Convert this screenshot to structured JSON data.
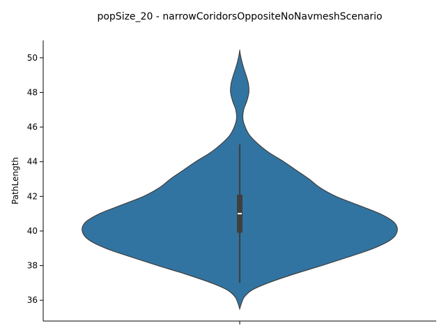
{
  "chart_data": {
    "type": "violin",
    "title": "popSize_20 - narrowCoridorsOppositeNoNavmeshScenario",
    "xlabel": "",
    "ylabel": "PathLength",
    "ylim": [
      34.8,
      51.0
    ],
    "yticks": [
      "36",
      "38",
      "40",
      "42",
      "44",
      "46",
      "48",
      "50"
    ],
    "grid": false,
    "legend": "none",
    "color": "#3274a1",
    "edge_color": "#3f3f3f",
    "density_profile": [
      [
        35.5,
        0.0
      ],
      [
        35.8,
        0.01
      ],
      [
        36.2,
        0.03
      ],
      [
        36.6,
        0.08
      ],
      [
        37.0,
        0.18
      ],
      [
        37.5,
        0.34
      ],
      [
        38.0,
        0.52
      ],
      [
        38.5,
        0.69
      ],
      [
        39.0,
        0.85
      ],
      [
        39.5,
        0.96
      ],
      [
        40.0,
        1.0
      ],
      [
        40.5,
        0.98
      ],
      [
        41.0,
        0.89
      ],
      [
        41.5,
        0.75
      ],
      [
        42.0,
        0.61
      ],
      [
        42.5,
        0.51
      ],
      [
        43.0,
        0.44
      ],
      [
        43.5,
        0.36
      ],
      [
        44.0,
        0.28
      ],
      [
        44.5,
        0.19
      ],
      [
        45.0,
        0.12
      ],
      [
        45.5,
        0.065
      ],
      [
        46.0,
        0.035
      ],
      [
        46.5,
        0.02
      ],
      [
        47.0,
        0.025
      ],
      [
        47.5,
        0.045
      ],
      [
        48.0,
        0.058
      ],
      [
        48.5,
        0.055
      ],
      [
        49.0,
        0.04
      ],
      [
        49.5,
        0.022
      ],
      [
        50.0,
        0.008
      ],
      [
        50.4,
        0.0
      ]
    ],
    "box": {
      "whisker_low": 37.0,
      "q1": 39.9,
      "median": 41.0,
      "q3": 42.1,
      "whisker_high": 45.0
    }
  }
}
